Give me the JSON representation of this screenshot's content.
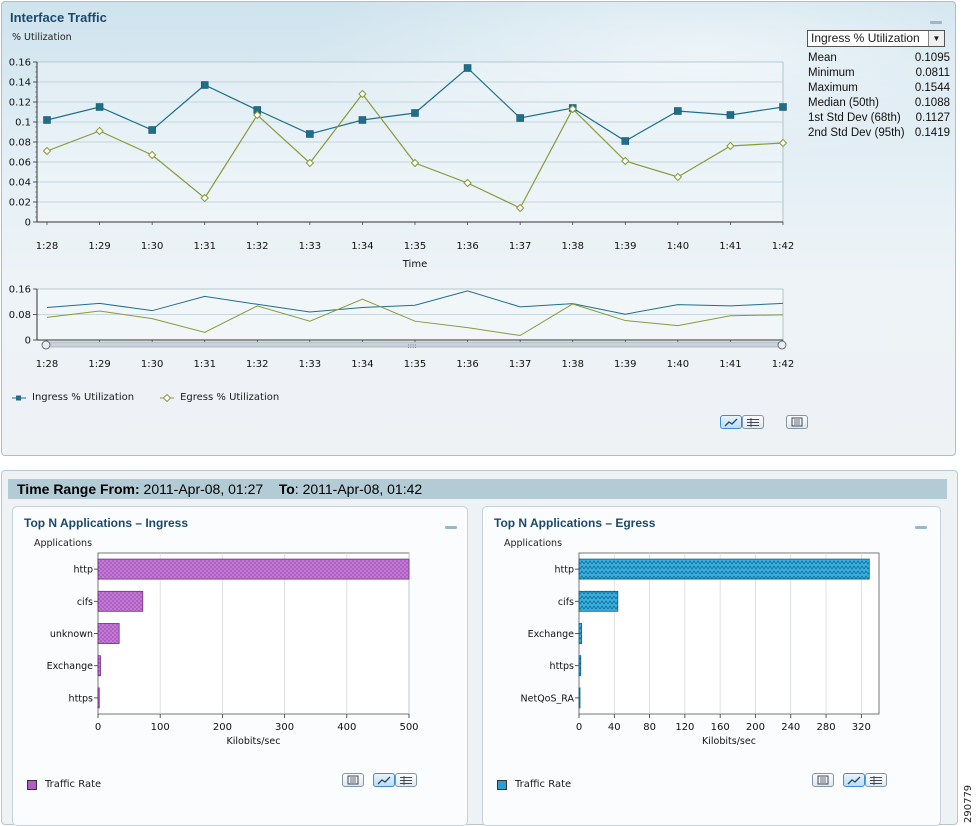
{
  "interface_traffic": {
    "title": "Interface Traffic",
    "y_label": "% Utilization",
    "x_label": "Time",
    "stats_dropdown": "Ingress % Utilization",
    "stats": [
      {
        "label": "Mean",
        "value": "0.1095"
      },
      {
        "label": "Minimum",
        "value": "0.0811"
      },
      {
        "label": "Maximum",
        "value": "0.1544"
      },
      {
        "label": "Median (50th)",
        "value": "0.1088"
      },
      {
        "label": "1st Std Dev (68th)",
        "value": "0.1127"
      },
      {
        "label": "2nd Std Dev (95th)",
        "value": "0.1419"
      }
    ],
    "legend": [
      "Ingress % Utilization",
      "Egress % Utilization"
    ],
    "colors": {
      "ingress": "#1f6f8b",
      "egress": "#8a9a3a"
    }
  },
  "time_range": {
    "from_label": "Time Range From:",
    "from_value": "2011-Apr-08, 01:27",
    "to_label": "To",
    "to_value": "2011-Apr-08, 01:42"
  },
  "ingress_panel": {
    "title": "Top N Applications – Ingress",
    "y_label": "Applications",
    "x_label": "Kilobits/sec",
    "legend": "Traffic Rate",
    "color": "#b05cc4"
  },
  "egress_panel": {
    "title": "Top N Applications – Egress",
    "y_label": "Applications",
    "x_label": "Kilobits/sec",
    "legend": "Traffic Rate",
    "color": "#2a9fd1"
  },
  "figure_id": "290779",
  "chart_data": [
    {
      "type": "line",
      "x": [
        "1:28",
        "1:29",
        "1:30",
        "1:31",
        "1:32",
        "1:33",
        "1:34",
        "1:35",
        "1:36",
        "1:37",
        "1:38",
        "1:39",
        "1:40",
        "1:41",
        "1:42"
      ],
      "series": [
        {
          "name": "Ingress % Utilization",
          "values": [
            0.102,
            0.115,
            0.092,
            0.137,
            0.112,
            0.088,
            0.102,
            0.109,
            0.154,
            0.104,
            0.114,
            0.081,
            0.111,
            0.107,
            0.115
          ]
        },
        {
          "name": "Egress % Utilization",
          "values": [
            0.071,
            0.091,
            0.067,
            0.024,
            0.107,
            0.059,
            0.128,
            0.059,
            0.039,
            0.014,
            0.113,
            0.061,
            0.045,
            0.076,
            0.079
          ]
        }
      ],
      "y_ticks": [
        "0",
        "0.02",
        "0.04",
        "0.06",
        "0.08",
        "0.1",
        "0.12",
        "0.14",
        "0.16"
      ],
      "ylim": [
        0,
        0.16
      ],
      "xlabel": "Time",
      "ylabel": "% Utilization"
    },
    {
      "type": "line",
      "x": [
        "1:28",
        "1:29",
        "1:30",
        "1:31",
        "1:32",
        "1:33",
        "1:34",
        "1:35",
        "1:36",
        "1:37",
        "1:38",
        "1:39",
        "1:40",
        "1:41",
        "1:42"
      ],
      "series": [
        {
          "name": "Ingress % Utilization",
          "values": [
            0.102,
            0.115,
            0.092,
            0.137,
            0.112,
            0.088,
            0.102,
            0.109,
            0.154,
            0.104,
            0.114,
            0.081,
            0.111,
            0.107,
            0.115
          ]
        },
        {
          "name": "Egress % Utilization",
          "values": [
            0.071,
            0.091,
            0.067,
            0.024,
            0.107,
            0.059,
            0.128,
            0.059,
            0.039,
            0.014,
            0.113,
            0.061,
            0.045,
            0.076,
            0.079
          ]
        }
      ],
      "y_ticks": [
        "0",
        "0.08",
        "0.16"
      ],
      "ylim": [
        0,
        0.16
      ]
    },
    {
      "type": "bar",
      "orientation": "horizontal",
      "categories": [
        "http",
        "cifs",
        "unknown",
        "Exchange",
        "https"
      ],
      "values": [
        500,
        72,
        34,
        4,
        2
      ],
      "x_ticks": [
        "0",
        "100",
        "200",
        "300",
        "400",
        "500"
      ],
      "xlim": [
        0,
        500
      ],
      "xlabel": "Kilobits/sec",
      "ylabel": "Applications"
    },
    {
      "type": "bar",
      "orientation": "horizontal",
      "categories": [
        "http",
        "cifs",
        "Exchange",
        "https",
        "NetQoS_RA"
      ],
      "values": [
        329,
        44,
        3,
        2,
        1
      ],
      "x_ticks": [
        "0",
        "40",
        "80",
        "120",
        "160",
        "200",
        "240",
        "280",
        "320"
      ],
      "xlim": [
        0,
        340
      ],
      "xlabel": "Kilobits/sec",
      "ylabel": "Applications"
    }
  ]
}
